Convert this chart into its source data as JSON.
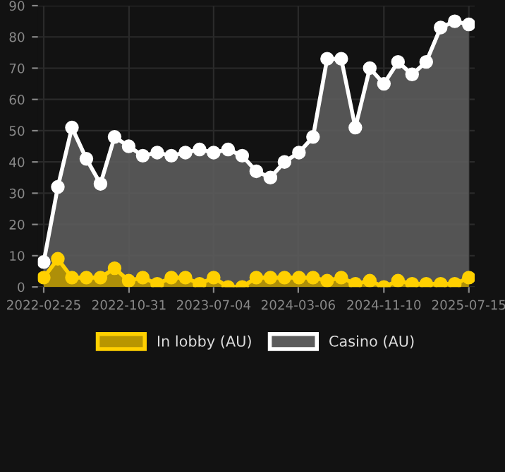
{
  "chart_data": {
    "type": "area",
    "x": [
      "2022-02-25",
      "2022-04-07",
      "2022-05-18",
      "2022-06-29",
      "2022-08-09",
      "2022-09-19",
      "2022-10-30",
      "2022-12-10",
      "2023-01-21",
      "2023-03-03",
      "2023-04-13",
      "2023-05-24",
      "2023-07-04",
      "2023-08-15",
      "2023-09-25",
      "2023-11-05",
      "2023-12-16",
      "2024-01-26",
      "2024-03-08",
      "2024-04-18",
      "2024-05-29",
      "2024-07-09",
      "2024-08-19",
      "2024-09-30",
      "2024-11-10",
      "2024-12-21",
      "2025-01-31",
      "2025-03-13",
      "2025-04-24",
      "2025-06-04",
      "2025-07-15"
    ],
    "series": [
      {
        "name": "In lobby (AU)",
        "color": "#ffd000",
        "values": [
          3,
          9,
          3,
          3,
          3,
          6,
          2,
          3,
          1,
          3,
          3,
          1,
          3,
          0,
          0,
          3,
          3,
          3,
          3,
          3,
          2,
          3,
          1,
          2,
          0,
          2,
          1,
          1,
          1,
          1,
          3
        ]
      },
      {
        "name": "Casino (AU)",
        "color": "#ffffff",
        "values": [
          8,
          32,
          51,
          41,
          33,
          48,
          45,
          42,
          43,
          42,
          43,
          44,
          43,
          44,
          42,
          37,
          35,
          40,
          43,
          48,
          73,
          73,
          51,
          70,
          65,
          72,
          68,
          72,
          83,
          85,
          84
        ]
      }
    ],
    "xlim": [
      "2022-02-08",
      "2025-08-01"
    ],
    "xticks": [
      "2022-02-25",
      "2022-10-31",
      "2023-07-04",
      "2024-03-06",
      "2024-11-10",
      "2025-07-15"
    ],
    "ylim": [
      0,
      90
    ],
    "yticks": [
      0,
      10,
      20,
      30,
      40,
      50,
      60,
      70,
      80,
      90
    ],
    "grid": true,
    "legend": "bottom",
    "marker": "circle",
    "line_style": "solid"
  }
}
